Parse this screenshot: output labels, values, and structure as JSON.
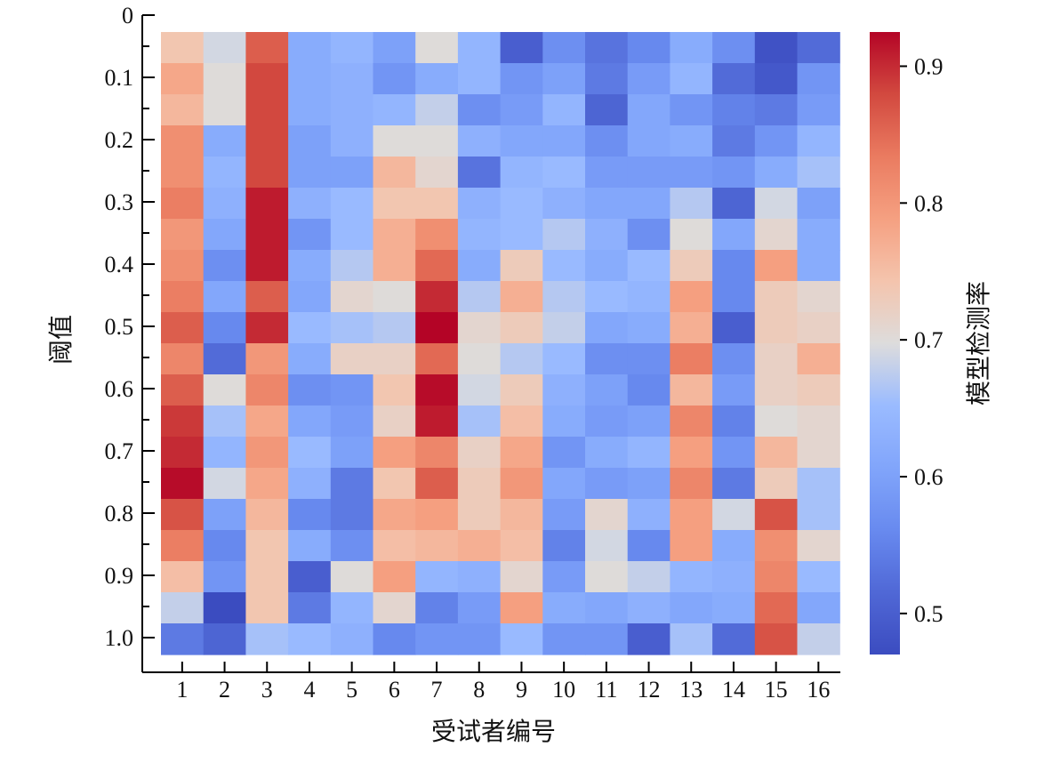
{
  "chart_data": {
    "type": "heatmap",
    "xlabel": "受试者编号",
    "ylabel": "阈值",
    "colorbar_label": "模型检测率",
    "x_tick_labels": [
      "1",
      "2",
      "3",
      "4",
      "5",
      "6",
      "7",
      "8",
      "9",
      "10",
      "11",
      "12",
      "13",
      "14",
      "15",
      "16"
    ],
    "y_tick_labels": [
      "0",
      "0.1",
      "0.2",
      "0.3",
      "0.4",
      "0.5",
      "0.6",
      "0.7",
      "0.8",
      "0.9",
      "1.0"
    ],
    "colorbar_ticks": [
      "0.5",
      "0.6",
      "0.7",
      "0.8",
      "0.9"
    ],
    "colorbar_range": [
      0.47,
      0.925
    ],
    "colormap": "coolwarm",
    "colors": {
      "low": "#3b4cc0",
      "mid": "#dddcdc",
      "high": "#b40426"
    },
    "rows": [
      [
        0.74,
        0.69,
        0.86,
        0.62,
        0.64,
        0.6,
        0.7,
        0.64,
        0.5,
        0.57,
        0.53,
        0.56,
        0.62,
        0.57,
        0.48,
        0.52
      ],
      [
        0.78,
        0.7,
        0.88,
        0.62,
        0.63,
        0.58,
        0.62,
        0.64,
        0.58,
        0.6,
        0.54,
        0.59,
        0.64,
        0.52,
        0.49,
        0.58
      ],
      [
        0.76,
        0.7,
        0.88,
        0.62,
        0.63,
        0.64,
        0.68,
        0.57,
        0.59,
        0.64,
        0.51,
        0.61,
        0.58,
        0.55,
        0.54,
        0.59
      ],
      [
        0.81,
        0.62,
        0.88,
        0.6,
        0.63,
        0.7,
        0.7,
        0.63,
        0.61,
        0.61,
        0.57,
        0.61,
        0.62,
        0.54,
        0.58,
        0.64
      ],
      [
        0.81,
        0.64,
        0.88,
        0.6,
        0.6,
        0.76,
        0.71,
        0.53,
        0.64,
        0.65,
        0.59,
        0.59,
        0.59,
        0.58,
        0.62,
        0.66
      ],
      [
        0.83,
        0.63,
        0.91,
        0.63,
        0.65,
        0.74,
        0.74,
        0.63,
        0.65,
        0.63,
        0.61,
        0.61,
        0.67,
        0.51,
        0.69,
        0.6
      ],
      [
        0.8,
        0.61,
        0.91,
        0.58,
        0.65,
        0.77,
        0.81,
        0.64,
        0.65,
        0.67,
        0.63,
        0.57,
        0.7,
        0.61,
        0.71,
        0.62
      ],
      [
        0.81,
        0.57,
        0.91,
        0.62,
        0.67,
        0.77,
        0.85,
        0.62,
        0.73,
        0.65,
        0.62,
        0.65,
        0.73,
        0.56,
        0.79,
        0.62
      ],
      [
        0.83,
        0.61,
        0.86,
        0.61,
        0.71,
        0.7,
        0.9,
        0.67,
        0.77,
        0.67,
        0.65,
        0.64,
        0.79,
        0.56,
        0.73,
        0.71
      ],
      [
        0.86,
        0.56,
        0.9,
        0.65,
        0.66,
        0.67,
        0.93,
        0.71,
        0.73,
        0.68,
        0.61,
        0.62,
        0.77,
        0.5,
        0.73,
        0.72
      ],
      [
        0.82,
        0.52,
        0.8,
        0.62,
        0.72,
        0.72,
        0.85,
        0.7,
        0.67,
        0.65,
        0.57,
        0.57,
        0.83,
        0.57,
        0.72,
        0.77
      ],
      [
        0.86,
        0.7,
        0.82,
        0.57,
        0.58,
        0.74,
        0.92,
        0.69,
        0.73,
        0.63,
        0.6,
        0.56,
        0.76,
        0.59,
        0.72,
        0.73
      ],
      [
        0.89,
        0.66,
        0.78,
        0.61,
        0.59,
        0.72,
        0.91,
        0.66,
        0.75,
        0.62,
        0.59,
        0.6,
        0.82,
        0.55,
        0.7,
        0.71
      ],
      [
        0.9,
        0.64,
        0.8,
        0.65,
        0.6,
        0.79,
        0.82,
        0.72,
        0.78,
        0.58,
        0.62,
        0.64,
        0.79,
        0.58,
        0.76,
        0.71
      ],
      [
        0.92,
        0.69,
        0.78,
        0.63,
        0.54,
        0.74,
        0.86,
        0.73,
        0.8,
        0.61,
        0.59,
        0.6,
        0.82,
        0.54,
        0.73,
        0.66
      ],
      [
        0.87,
        0.6,
        0.76,
        0.56,
        0.54,
        0.78,
        0.79,
        0.73,
        0.76,
        0.59,
        0.71,
        0.63,
        0.79,
        0.69,
        0.87,
        0.66
      ],
      [
        0.83,
        0.56,
        0.74,
        0.62,
        0.57,
        0.75,
        0.76,
        0.77,
        0.75,
        0.55,
        0.69,
        0.56,
        0.79,
        0.62,
        0.81,
        0.71
      ],
      [
        0.75,
        0.58,
        0.74,
        0.5,
        0.7,
        0.79,
        0.64,
        0.63,
        0.71,
        0.59,
        0.7,
        0.68,
        0.64,
        0.63,
        0.82,
        0.65
      ],
      [
        0.68,
        0.47,
        0.74,
        0.54,
        0.64,
        0.71,
        0.55,
        0.59,
        0.79,
        0.62,
        0.61,
        0.63,
        0.61,
        0.62,
        0.85,
        0.61
      ],
      [
        0.54,
        0.51,
        0.66,
        0.65,
        0.63,
        0.56,
        0.58,
        0.58,
        0.65,
        0.58,
        0.58,
        0.5,
        0.66,
        0.52,
        0.87,
        0.68
      ]
    ]
  }
}
